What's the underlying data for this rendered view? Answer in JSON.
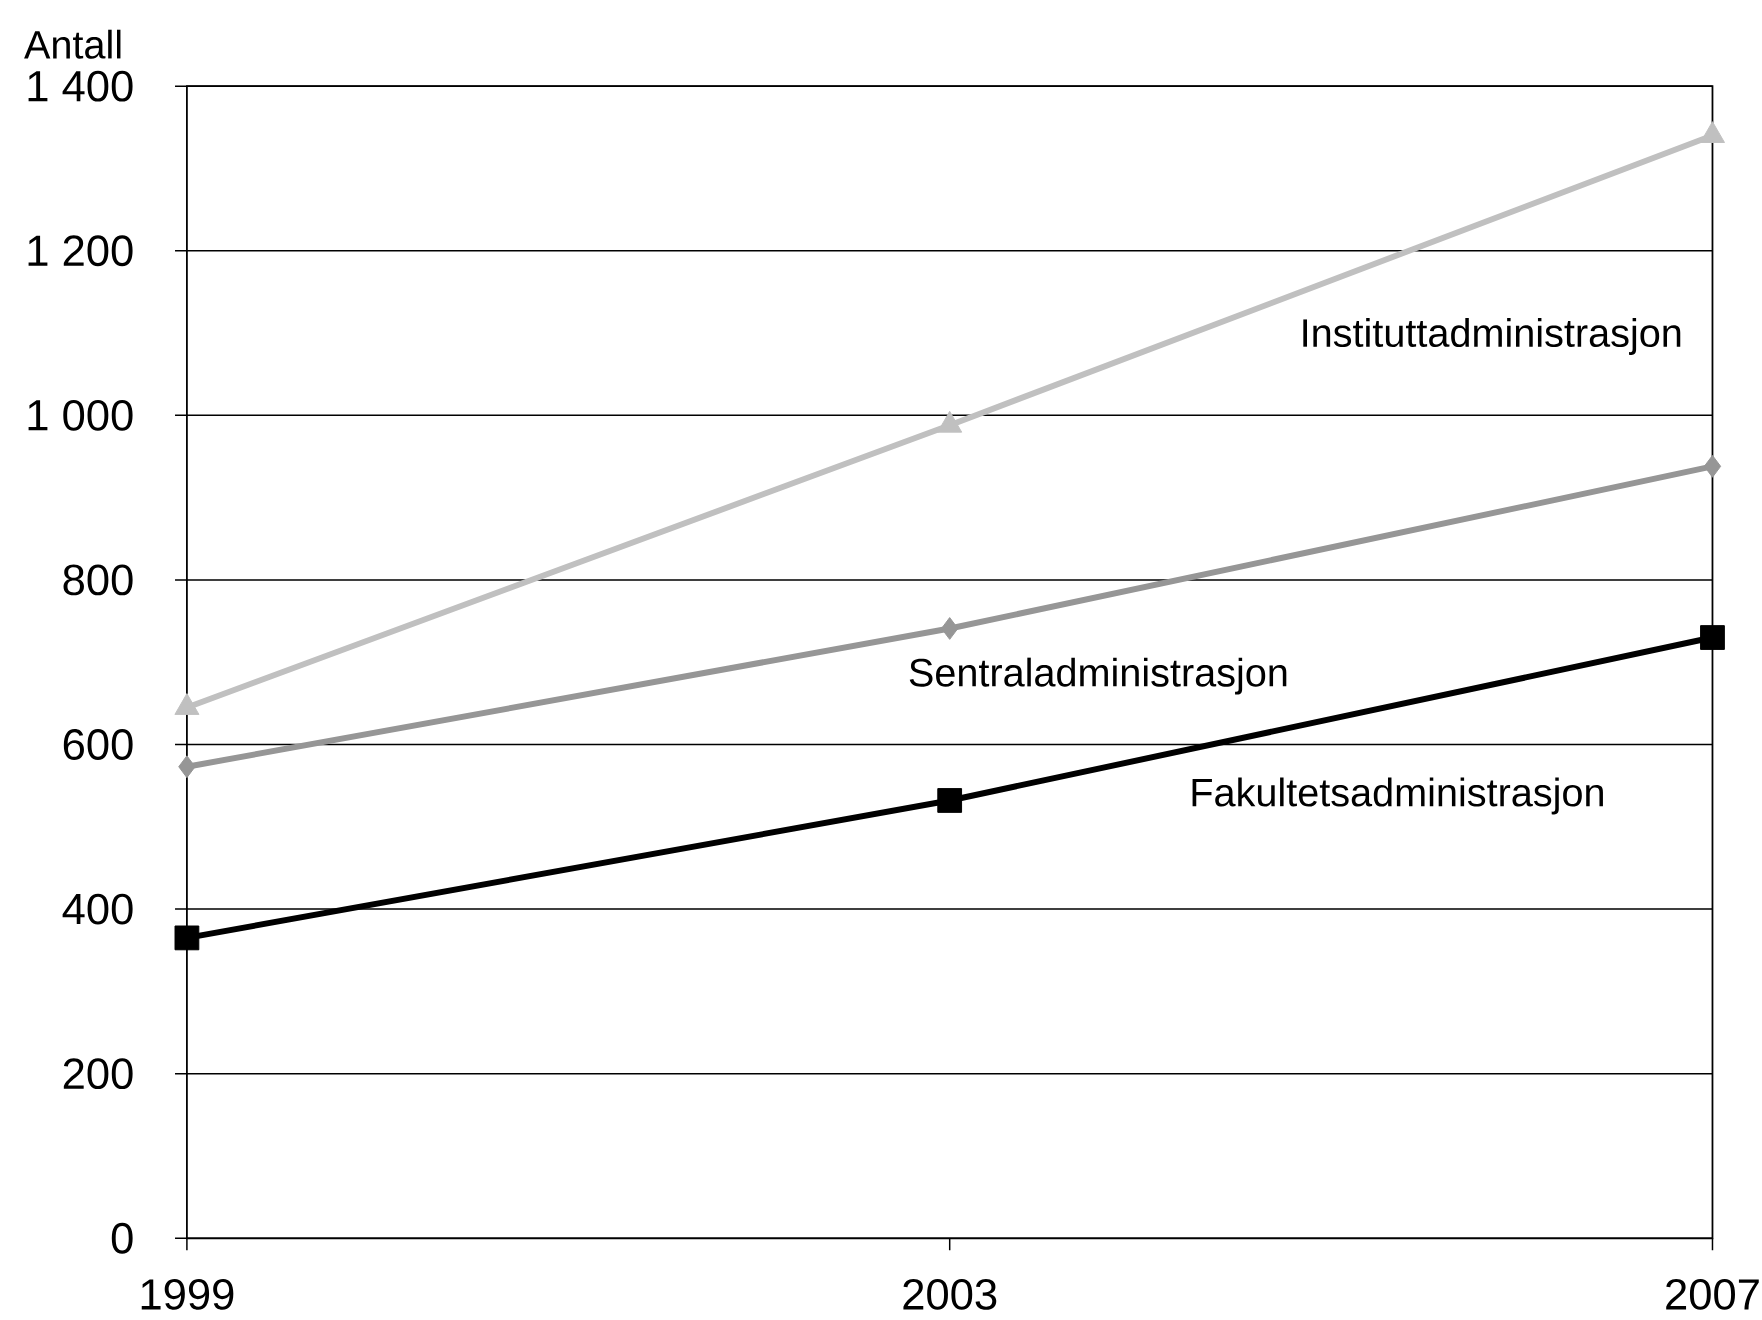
{
  "chart_data": {
    "type": "line",
    "ylabel": "Antall",
    "categories": [
      "1999",
      "2003",
      "2007"
    ],
    "series": [
      {
        "name": "Instituttadministrasjon",
        "color": "#c0c0c0",
        "marker": "triangle",
        "values": [
          645,
          988,
          1340
        ]
      },
      {
        "name": "Sentraladministrasjon",
        "color": "#969696",
        "marker": "diamond",
        "values": [
          573,
          741,
          938
        ]
      },
      {
        "name": "Fakultetsadministrasjon",
        "color": "#000000",
        "marker": "square",
        "values": [
          365,
          532,
          730
        ]
      }
    ],
    "ylim": [
      0,
      1400
    ],
    "yticks": [
      0,
      200,
      400,
      600,
      800,
      {
        "value": 1000,
        "label": "1 000"
      },
      {
        "value": 1200,
        "label": "1 200"
      },
      {
        "value": 1400,
        "label": "1 400"
      }
    ],
    "grid": "y",
    "legend": false
  }
}
